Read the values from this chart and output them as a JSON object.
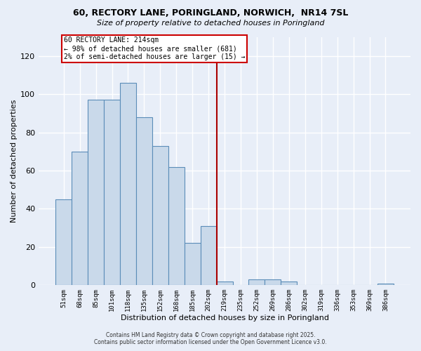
{
  "title": "60, RECTORY LANE, PORINGLAND, NORWICH,  NR14 7SL",
  "subtitle": "Size of property relative to detached houses in Poringland",
  "xlabel": "Distribution of detached houses by size in Poringland",
  "ylabel": "Number of detached properties",
  "categories": [
    "51sqm",
    "68sqm",
    "85sqm",
    "101sqm",
    "118sqm",
    "135sqm",
    "152sqm",
    "168sqm",
    "185sqm",
    "202sqm",
    "219sqm",
    "235sqm",
    "252sqm",
    "269sqm",
    "286sqm",
    "302sqm",
    "319sqm",
    "336sqm",
    "353sqm",
    "369sqm",
    "386sqm"
  ],
  "values": [
    45,
    70,
    97,
    97,
    106,
    88,
    73,
    62,
    22,
    31,
    2,
    0,
    3,
    3,
    2,
    0,
    0,
    0,
    0,
    0,
    1
  ],
  "bar_color": "#c9d9ea",
  "bar_edge_color": "#5b8db8",
  "bg_color": "#e8eef8",
  "grid_color": "#ffffff",
  "vline_x_index": 9.5,
  "vline_color": "#aa0000",
  "annotation_title": "60 RECTORY LANE: 214sqm",
  "annotation_line1": "← 98% of detached houses are smaller (681)",
  "annotation_line2": "2% of semi-detached houses are larger (15) →",
  "annotation_box_color": "#ffffff",
  "annotation_border_color": "#cc0000",
  "ylim": [
    0,
    130
  ],
  "yticks": [
    0,
    20,
    40,
    60,
    80,
    100,
    120
  ],
  "footer_line1": "Contains HM Land Registry data © Crown copyright and database right 2025.",
  "footer_line2": "Contains public sector information licensed under the Open Government Licence v3.0."
}
